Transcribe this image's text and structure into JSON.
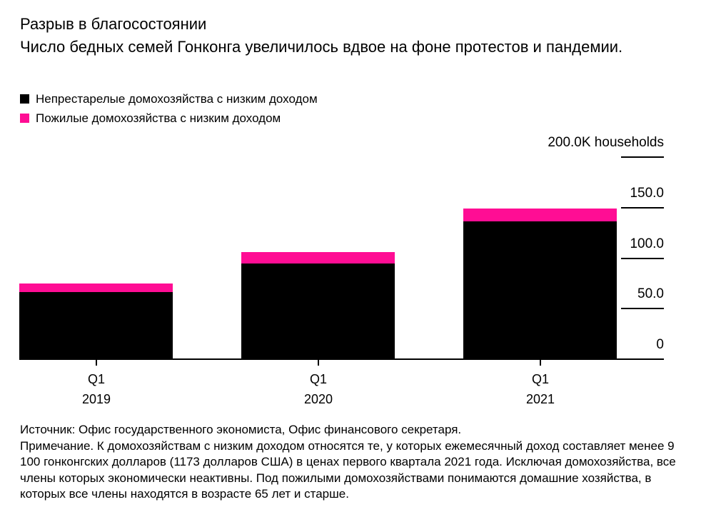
{
  "header": {
    "title": "Разрыв в благосостоянии",
    "subtitle": "Число бедных семей Гонконга увеличилось вдвое на фоне протестов и пандемии."
  },
  "legend": [
    {
      "label": "Непрестарелые домохозяйства с низким доходом",
      "color": "#000000"
    },
    {
      "label": "Пожилые домохозяйства с низким доходом",
      "color": "#ff0d94"
    }
  ],
  "chart_data": {
    "type": "bar",
    "stacked": true,
    "title": "Разрыв в благосостоянии",
    "subtitle": "Число бедных семей Гонконга увеличилось вдвое на фоне протестов и пандемии.",
    "unit_label": "200.0K households",
    "categories": [
      {
        "quarter": "Q1",
        "year": "2019"
      },
      {
        "quarter": "Q1",
        "year": "2020"
      },
      {
        "quarter": "Q1",
        "year": "2021"
      }
    ],
    "series": [
      {
        "name": "Непрестарелые домохозяйства с низким доходом",
        "color": "#000000",
        "values": [
          66,
          94,
          136
        ]
      },
      {
        "name": "Пожилые домохозяйства с низким доходом",
        "color": "#ff0d94",
        "values": [
          8.5,
          11.5,
          13
        ]
      }
    ],
    "totals": [
      74.5,
      105.5,
      149
    ],
    "ylim": [
      0,
      200
    ],
    "y_ticks": [
      {
        "value": 200,
        "label": "200.0K households",
        "line": true
      },
      {
        "value": 150,
        "label": "150.0",
        "line": true
      },
      {
        "value": 100,
        "label": "100.0",
        "line": true
      },
      {
        "value": 50,
        "label": "50.0",
        "line": true
      },
      {
        "value": 0,
        "label": "0",
        "line": false
      }
    ],
    "y_axis_side": "right",
    "legend_position": "top-left",
    "grid": false
  },
  "footer": {
    "source": "Источник: Офис государственного экономиста, Офис финансового секретаря.",
    "note": "Примечание. К домохозяйствам с низким доходом относятся те, у которых ежемесячный доход составляет менее 9 100 гонконгских долларов (1173 долларов США) в ценах первого квартала 2021 года. Исключая домохозяйства, все члены которых экономически неактивны. Под пожилыми домохозяйствами понимаются домашние хозяйства, в которых все члены находятся в возрасте 65 лет и старше."
  },
  "colors": {
    "non_elderly": "#000000",
    "elderly": "#ff0d94",
    "axis": "#000000",
    "background": "#ffffff"
  }
}
